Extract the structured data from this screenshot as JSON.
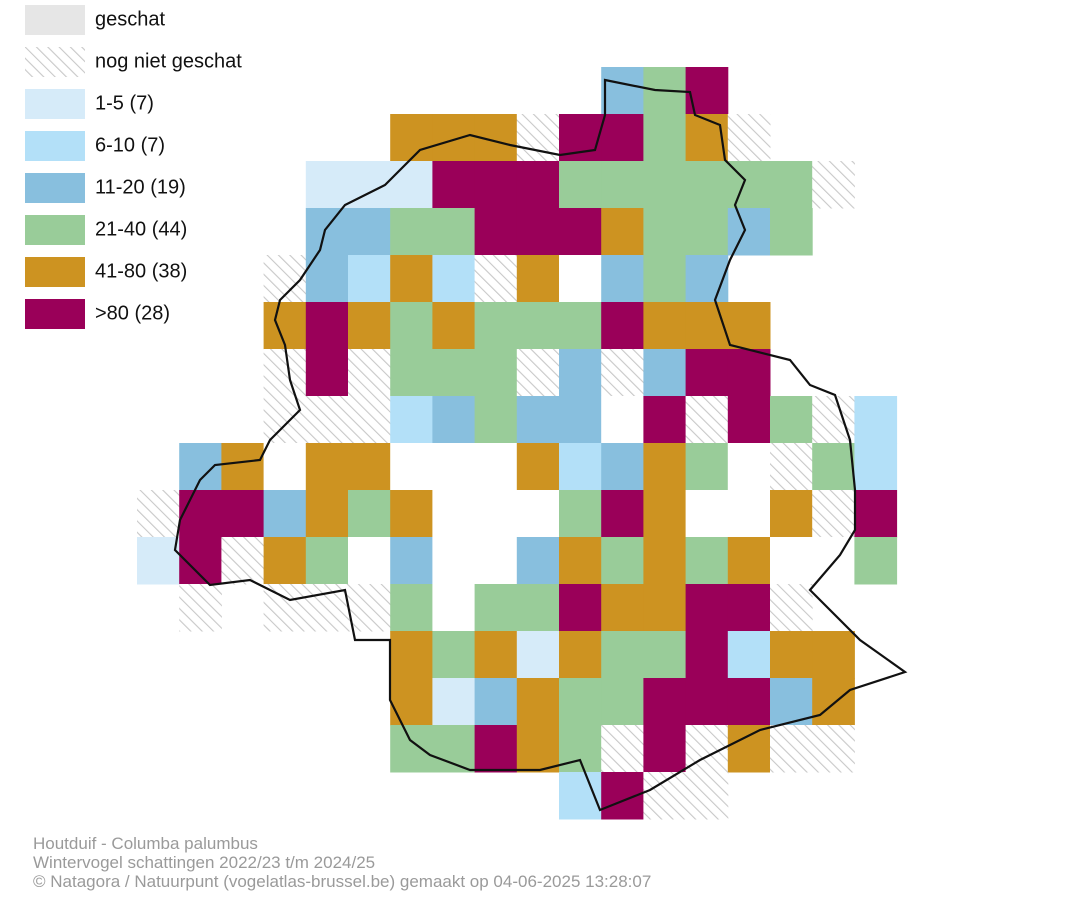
{
  "legend": [
    {
      "label": "geschat",
      "color": "#e6e6e6"
    },
    {
      "label": "nog niet geschat",
      "color": "hatch"
    },
    {
      "label": "1-5 (7)",
      "color": "#d6ebf9"
    },
    {
      "label": "6-10 (7)",
      "color": "#b3e0f8"
    },
    {
      "label": "11-20 (19)",
      "color": "#88bfde"
    },
    {
      "label": "21-40 (44)",
      "color": "#99cc99"
    },
    {
      "label": "41-80 (38)",
      "color": "#cd9321"
    },
    {
      "label": ">80 (28)",
      "color": "#9a0059"
    }
  ],
  "footer": [
    "Houtduif - Columba palumbus",
    "Wintervogel schattingen 2022/23 t/m 2024/25",
    "© Natagora / Natuurpunt (vogelatlas-brussel.be) gemaakt op 04-06-2025 13:28:07"
  ]
}
